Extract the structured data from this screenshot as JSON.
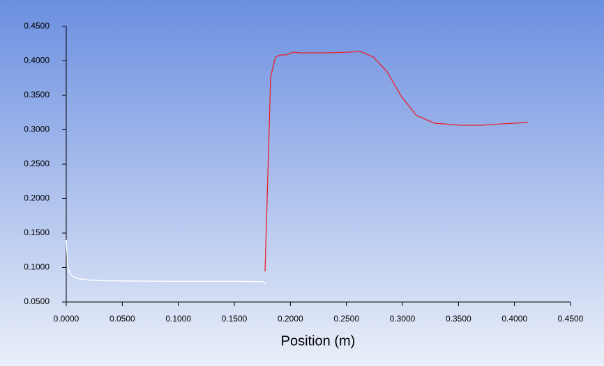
{
  "chart_data": {
    "type": "line",
    "x_label": "Position (m)",
    "xlim": [
      0,
      0.45
    ],
    "ylim": [
      0.05,
      0.45
    ],
    "xticks": [
      {
        "value": 0,
        "label": "0.0000"
      },
      {
        "value": 0.05,
        "label": "0.0500"
      },
      {
        "value": 0.1,
        "label": "0.1000"
      },
      {
        "value": 0.15,
        "label": "0.1500"
      },
      {
        "value": 0.2,
        "label": "0.2000"
      },
      {
        "value": 0.25,
        "label": "0.2500"
      },
      {
        "value": 0.3,
        "label": "0.3000"
      },
      {
        "value": 0.35,
        "label": "0.3500"
      },
      {
        "value": 0.4,
        "label": "0.4000"
      },
      {
        "value": 0.45,
        "label": "0.4500"
      }
    ],
    "yticks": [
      {
        "value": 0.05,
        "label": "0.0500"
      },
      {
        "value": 0.1,
        "label": "0.1000"
      },
      {
        "value": 0.15,
        "label": "0.1500"
      },
      {
        "value": 0.2,
        "label": "0.2000"
      },
      {
        "value": 0.25,
        "label": "0.2500"
      },
      {
        "value": 0.3,
        "label": "0.3000"
      },
      {
        "value": 0.35,
        "label": "0.3500"
      },
      {
        "value": 0.4,
        "label": "0.4000"
      },
      {
        "value": 0.45,
        "label": "0.4500"
      }
    ],
    "series": [
      {
        "color": "#ffffff",
        "x": [
          0,
          0.001,
          0.003,
          0.006,
          0.01,
          0.02,
          0.03,
          0.05,
          0.1,
          0.15,
          0.175,
          0.177,
          0.178
        ],
        "values": [
          0.14,
          0.105,
          0.092,
          0.087,
          0.084,
          0.082,
          0.081,
          0.0805,
          0.08,
          0.08,
          0.0795,
          0.078,
          0.0755
        ]
      },
      {
        "color": "#e8202a",
        "x": [
          0.1774,
          0.1824,
          0.1867,
          0.191,
          0.196,
          0.2023,
          0.2085,
          0.2334,
          0.2521,
          0.2627,
          0.2739,
          0.2863,
          0.2988,
          0.3125,
          0.3286,
          0.3517,
          0.3703,
          0.389,
          0.412
        ],
        "values": [
          0.0944,
          0.377,
          0.4056,
          0.4086,
          0.4086,
          0.4126,
          0.4116,
          0.4116,
          0.4126,
          0.4136,
          0.4056,
          0.3843,
          0.349,
          0.3207,
          0.3096,
          0.3066,
          0.3066,
          0.3086,
          0.3106
        ]
      }
    ]
  }
}
